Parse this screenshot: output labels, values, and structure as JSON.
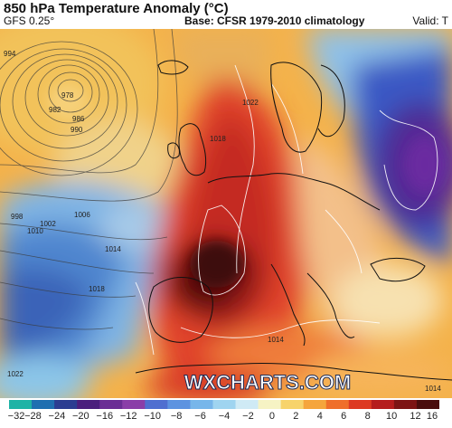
{
  "header": {
    "title": "850 hPa Temperature Anomaly (°C)",
    "model": "GFS 0.25°",
    "base": "Base: CFSR 1979-2010 climatology",
    "valid": "Valid: T"
  },
  "watermark": "WXCHARTS.COM",
  "isobars": [
    "994",
    "978",
    "982",
    "986",
    "990",
    "998",
    "1002",
    "1006",
    "1010",
    "1014",
    "1018",
    "1022",
    "1018",
    "1014",
    "1014",
    "1022"
  ],
  "colorbar": {
    "ticks": [
      "−32",
      "−28",
      "−24",
      "−20",
      "−16",
      "−12",
      "−10",
      "−8",
      "−6",
      "−4",
      "−2",
      "0",
      "2",
      "4",
      "6",
      "8",
      "10",
      "12",
      "16"
    ],
    "colors": [
      "#1fb3a6",
      "#1f6fb0",
      "#2b3d91",
      "#4b1f7d",
      "#6b2e95",
      "#8a3ea8",
      "#4f6fd0",
      "#5d93e0",
      "#77b6ea",
      "#9fd4f0",
      "#cfeaf5",
      "#f6f3c4",
      "#f7d36b",
      "#f5a53c",
      "#ef6f2a",
      "#dd3a22",
      "#b51d1d",
      "#7d1414",
      "#4a0d0d"
    ]
  }
}
